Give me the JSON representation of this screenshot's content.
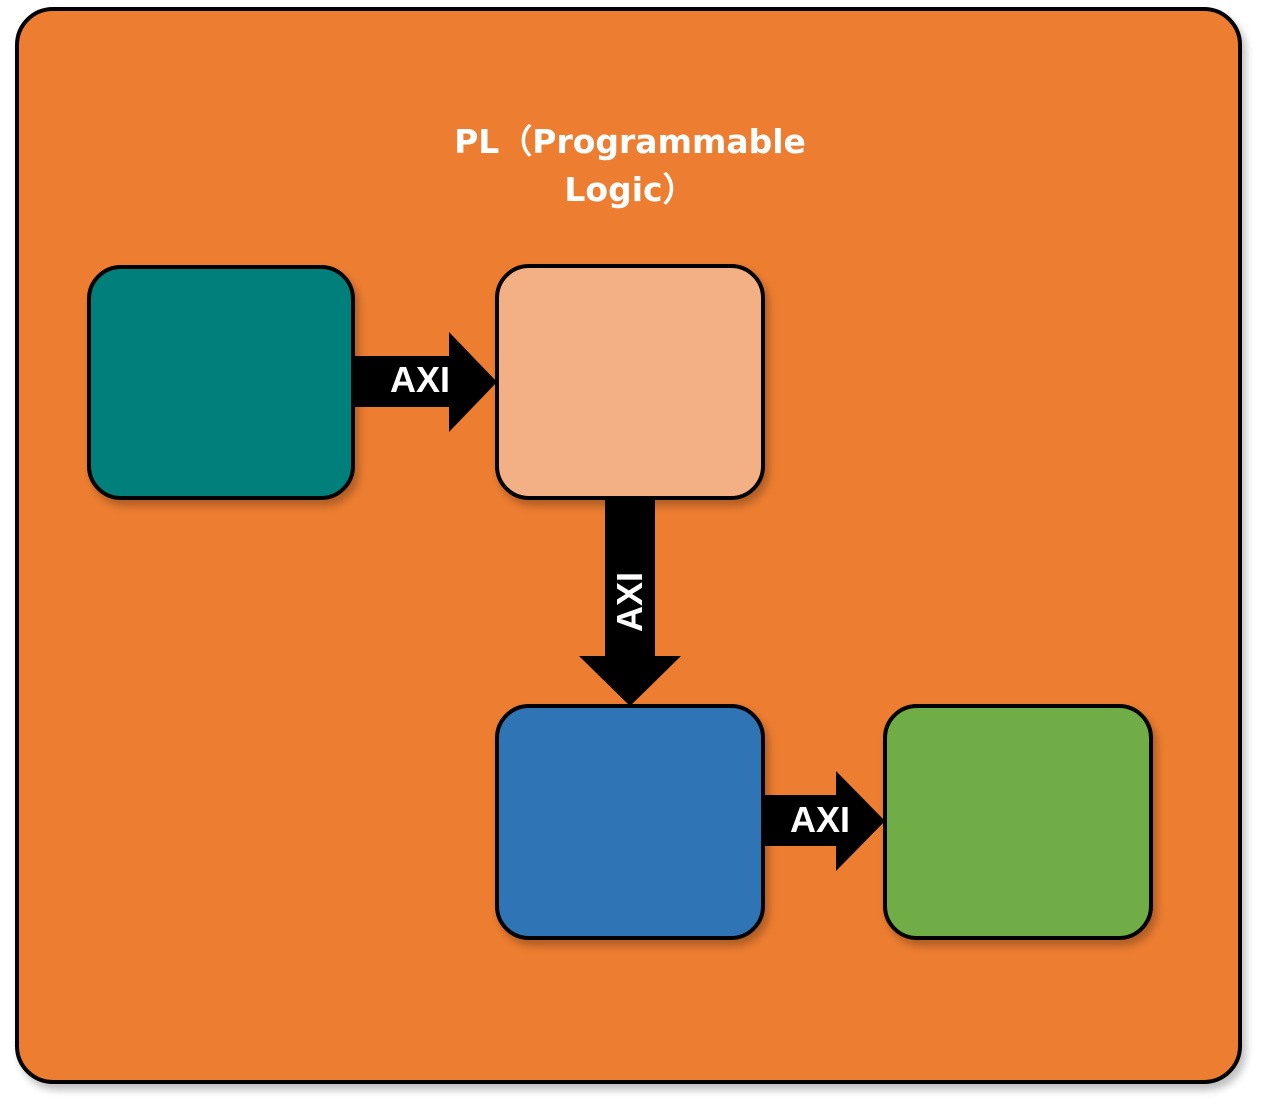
{
  "title": {
    "line1": "PL（Programmable",
    "line2": "Logic）"
  },
  "colors": {
    "outer_fill": "#EC7D31",
    "block_teal": "#007F7B",
    "block_peach": "#F3B085",
    "block_blue": "#2F75B5",
    "block_green": "#70AD46",
    "arrow": "#000000",
    "text": "#FFFFFF"
  },
  "blocks": [
    {
      "id": "teal",
      "label": ""
    },
    {
      "id": "peach",
      "label": ""
    },
    {
      "id": "blue",
      "label": ""
    },
    {
      "id": "green",
      "label": ""
    }
  ],
  "connections": [
    {
      "from": "teal",
      "to": "peach",
      "label": "AXI",
      "direction": "right"
    },
    {
      "from": "peach",
      "to": "blue",
      "label": "AXI",
      "direction": "down"
    },
    {
      "from": "blue",
      "to": "green",
      "label": "AXI",
      "direction": "right"
    }
  ]
}
